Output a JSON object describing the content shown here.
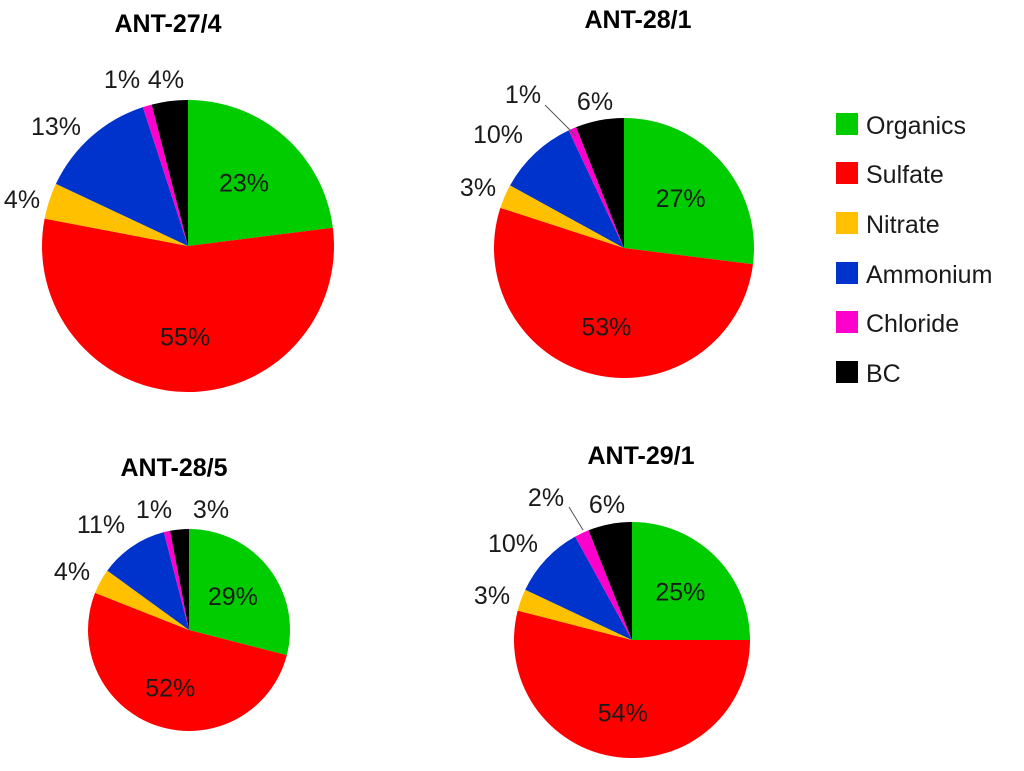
{
  "legend": {
    "items": [
      {
        "label": "Organics",
        "color": "#00cc00"
      },
      {
        "label": "Sulfate",
        "color": "#ff0000"
      },
      {
        "label": "Nitrate",
        "color": "#ffc000"
      },
      {
        "label": "Ammonium",
        "color": "#0033cc"
      },
      {
        "label": "Chloride",
        "color": "#ff00cc"
      },
      {
        "label": "BC",
        "color": "#000000"
      }
    ]
  },
  "chart_data": [
    {
      "type": "pie",
      "title": "ANT-27/4",
      "categories": [
        "Organics",
        "Sulfate",
        "Nitrate",
        "Ammonium",
        "Chloride",
        "BC"
      ],
      "values": [
        23,
        55,
        4,
        13,
        1,
        4
      ],
      "labels": [
        "23%",
        "55%",
        "4%",
        "13%",
        "1%",
        "4%"
      ]
    },
    {
      "type": "pie",
      "title": "ANT-28/1",
      "categories": [
        "Organics",
        "Sulfate",
        "Nitrate",
        "Ammonium",
        "Chloride",
        "BC"
      ],
      "values": [
        27,
        53,
        3,
        10,
        1,
        6
      ],
      "labels": [
        "27%",
        "53%",
        "3%",
        "10%",
        "1%",
        "6%"
      ]
    },
    {
      "type": "pie",
      "title": "ANT-28/5",
      "categories": [
        "Organics",
        "Sulfate",
        "Nitrate",
        "Ammonium",
        "Chloride",
        "BC"
      ],
      "values": [
        29,
        52,
        4,
        11,
        1,
        3
      ],
      "labels": [
        "29%",
        "52%",
        "4%",
        "11%",
        "1%",
        "3%"
      ]
    },
    {
      "type": "pie",
      "title": "ANT-29/1",
      "categories": [
        "Organics",
        "Sulfate",
        "Nitrate",
        "Ammonium",
        "Chloride",
        "BC"
      ],
      "values": [
        25,
        54,
        3,
        10,
        2,
        6
      ],
      "labels": [
        "25%",
        "54%",
        "3%",
        "10%",
        "2%",
        "6%"
      ]
    }
  ]
}
